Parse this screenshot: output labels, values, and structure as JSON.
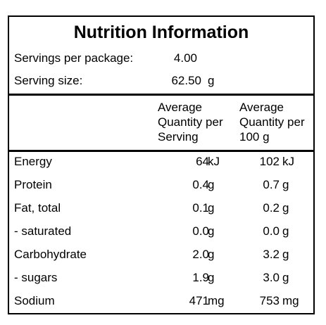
{
  "panel": {
    "title": "Nutrition Information",
    "servings": {
      "label": "Servings per package:",
      "value": "4.00",
      "unit": ""
    },
    "serving_size": {
      "label": "Serving size:",
      "value": "62.50",
      "unit": "g"
    },
    "columns": {
      "per_serving": "Average\nQuantity per\nServing",
      "per_100g": "Average\nQuantity per\n100 g"
    },
    "rows": [
      {
        "name": "Energy",
        "serving": "64",
        "serving_unit": "kJ",
        "per100": "102",
        "per100_unit": "kJ"
      },
      {
        "name": "Protein",
        "serving": "0.4",
        "serving_unit": "g",
        "per100": "0.7",
        "per100_unit": "g"
      },
      {
        "name": "Fat, total",
        "serving": "0.1",
        "serving_unit": "g",
        "per100": "0.2",
        "per100_unit": "g"
      },
      {
        "name": "- saturated",
        "serving": "0.0",
        "serving_unit": "g",
        "per100": "0.0",
        "per100_unit": "g"
      },
      {
        "name": "Carbohydrate",
        "serving": "2.0",
        "serving_unit": "g",
        "per100": "3.2",
        "per100_unit": "g"
      },
      {
        "name": "- sugars",
        "serving": "1.9",
        "serving_unit": "g",
        "per100": "3.0",
        "per100_unit": "g"
      },
      {
        "name": "Sodium",
        "serving": "471",
        "serving_unit": "mg",
        "per100": "753",
        "per100_unit": "mg"
      }
    ]
  }
}
